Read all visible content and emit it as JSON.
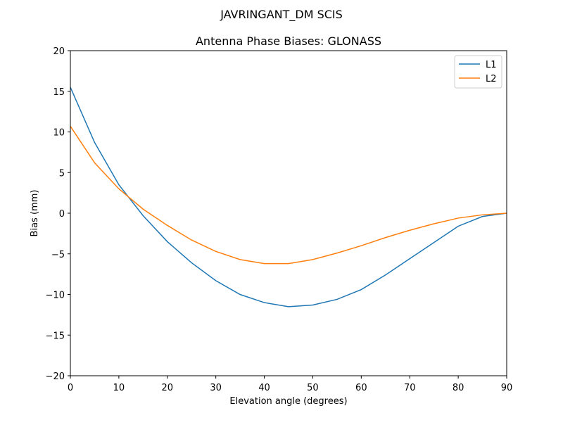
{
  "suptitle": "JAVRINGANT_DM   SCIS",
  "chart_data": {
    "type": "line",
    "title": "Antenna Phase Biases: GLONASS",
    "xlabel": "Elevation angle (degrees)",
    "ylabel": "Bias (mm)",
    "xlim": [
      0,
      90
    ],
    "ylim": [
      -20,
      20
    ],
    "xticks": [
      0,
      10,
      20,
      30,
      40,
      50,
      60,
      70,
      80,
      90
    ],
    "yticks": [
      -20,
      -15,
      -10,
      -5,
      0,
      5,
      10,
      15,
      20
    ],
    "ytick_labels": [
      "−20",
      "−15",
      "−10",
      "−5",
      "0",
      "5",
      "10",
      "15",
      "20"
    ],
    "grid": false,
    "legend_position": "top-right",
    "x": [
      0,
      5,
      10,
      15,
      20,
      25,
      30,
      35,
      40,
      45,
      50,
      55,
      60,
      65,
      70,
      75,
      80,
      85,
      90
    ],
    "series": [
      {
        "name": "L1",
        "color": "#1f77b4",
        "values": [
          15.5,
          8.7,
          3.5,
          -0.3,
          -3.5,
          -6.1,
          -8.3,
          -10.0,
          -11.0,
          -11.5,
          -11.3,
          -10.6,
          -9.4,
          -7.6,
          -5.6,
          -3.6,
          -1.6,
          -0.4,
          0.0
        ]
      },
      {
        "name": "L2",
        "color": "#ff7f0e",
        "values": [
          10.7,
          6.2,
          3.0,
          0.5,
          -1.5,
          -3.3,
          -4.7,
          -5.7,
          -6.2,
          -6.2,
          -5.7,
          -4.9,
          -4.0,
          -3.0,
          -2.1,
          -1.3,
          -0.6,
          -0.2,
          0.0
        ]
      }
    ]
  }
}
